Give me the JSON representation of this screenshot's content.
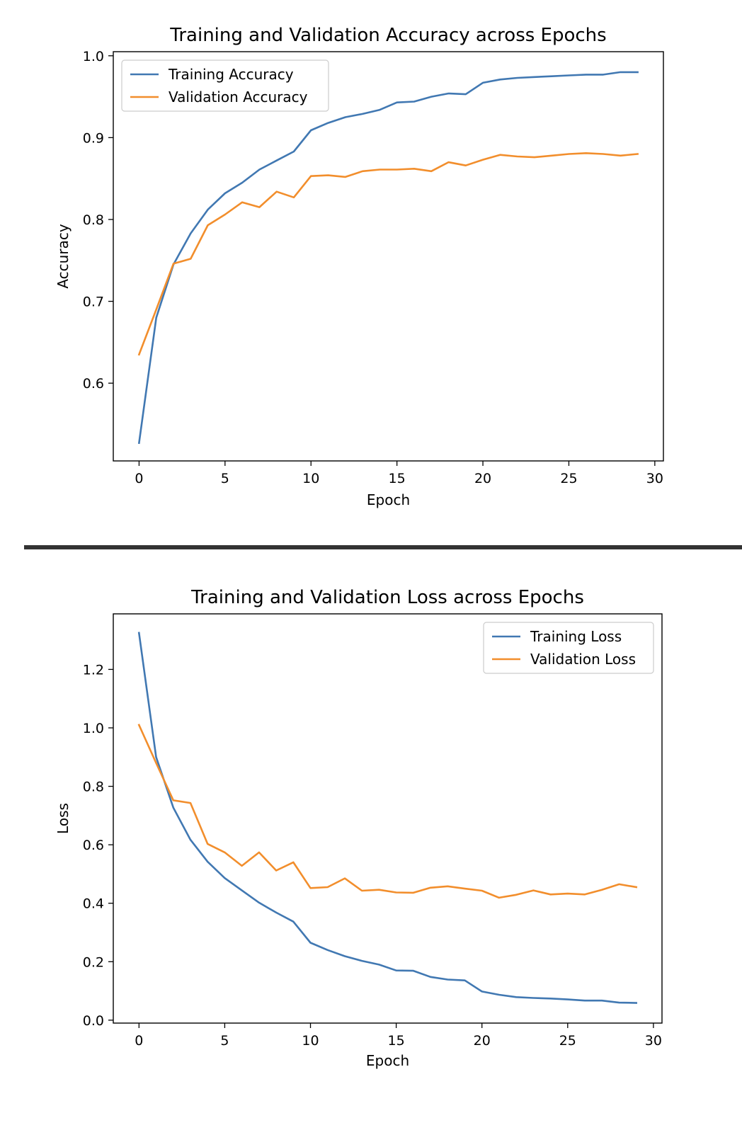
{
  "colors": {
    "training": "#4178b2",
    "validation": "#f28e2c",
    "divider": "#333333"
  },
  "chart_data": [
    {
      "type": "line",
      "title": "Training and Validation Accuracy across Epochs",
      "xlabel": "Epoch",
      "ylabel": "Accuracy",
      "xlim": [
        -1.5,
        30.5
      ],
      "ylim": [
        0.505,
        1.005
      ],
      "xticks": [
        0,
        5,
        10,
        15,
        20,
        25,
        30
      ],
      "xtick_labels": [
        "0",
        "5",
        "10",
        "15",
        "20",
        "25",
        "30"
      ],
      "yticks": [
        0.6,
        0.7,
        0.8,
        0.9,
        1.0
      ],
      "ytick_labels": [
        "0.6",
        "0.7",
        "0.8",
        "0.9",
        "1.0"
      ],
      "legend_position": "upper-left",
      "grid": false,
      "x": [
        0,
        1,
        2,
        3,
        4,
        5,
        6,
        7,
        8,
        9,
        10,
        11,
        12,
        13,
        14,
        15,
        16,
        17,
        18,
        19,
        20,
        21,
        22,
        23,
        24,
        25,
        26,
        27,
        28,
        29
      ],
      "series": [
        {
          "name": "Training Accuracy",
          "color": "#4178b2",
          "values": [
            0.527,
            0.68,
            0.745,
            0.783,
            0.812,
            0.832,
            0.845,
            0.861,
            0.872,
            0.883,
            0.909,
            0.918,
            0.925,
            0.929,
            0.934,
            0.943,
            0.944,
            0.95,
            0.954,
            0.953,
            0.967,
            0.971,
            0.973,
            0.974,
            0.975,
            0.976,
            0.977,
            0.977,
            0.98,
            0.98
          ]
        },
        {
          "name": "Validation Accuracy",
          "color": "#f28e2c",
          "values": [
            0.635,
            0.69,
            0.746,
            0.752,
            0.793,
            0.806,
            0.821,
            0.815,
            0.834,
            0.827,
            0.853,
            0.854,
            0.852,
            0.859,
            0.861,
            0.861,
            0.862,
            0.859,
            0.87,
            0.866,
            0.873,
            0.879,
            0.877,
            0.876,
            0.878,
            0.88,
            0.881,
            0.88,
            0.878,
            0.88
          ]
        }
      ]
    },
    {
      "type": "line",
      "title": "Training and Validation Loss across Epochs",
      "xlabel": "Epoch",
      "ylabel": "Loss",
      "xlim": [
        -1.5,
        30.5
      ],
      "ylim": [
        -0.01,
        1.39
      ],
      "xticks": [
        0,
        5,
        10,
        15,
        20,
        25,
        30
      ],
      "xtick_labels": [
        "0",
        "5",
        "10",
        "15",
        "20",
        "25",
        "30"
      ],
      "yticks": [
        0.0,
        0.2,
        0.4,
        0.6,
        0.8,
        1.0,
        1.2
      ],
      "ytick_labels": [
        "0.0",
        "0.2",
        "0.4",
        "0.6",
        "0.8",
        "1.0",
        "1.2"
      ],
      "legend_position": "upper-right",
      "grid": false,
      "x": [
        0,
        1,
        2,
        3,
        4,
        5,
        6,
        7,
        8,
        9,
        10,
        11,
        12,
        13,
        14,
        15,
        16,
        17,
        18,
        19,
        20,
        21,
        22,
        23,
        24,
        25,
        26,
        27,
        28,
        29
      ],
      "series": [
        {
          "name": "Training Loss",
          "color": "#4178b2",
          "values": [
            1.325,
            0.9,
            0.727,
            0.617,
            0.542,
            0.486,
            0.444,
            0.402,
            0.368,
            0.337,
            0.265,
            0.24,
            0.219,
            0.203,
            0.19,
            0.17,
            0.169,
            0.148,
            0.139,
            0.136,
            0.098,
            0.087,
            0.079,
            0.076,
            0.074,
            0.071,
            0.067,
            0.067,
            0.06,
            0.059
          ]
        },
        {
          "name": "Validation Loss",
          "color": "#f28e2c",
          "values": [
            1.01,
            0.88,
            0.752,
            0.743,
            0.603,
            0.574,
            0.528,
            0.574,
            0.512,
            0.54,
            0.452,
            0.455,
            0.485,
            0.443,
            0.446,
            0.437,
            0.436,
            0.453,
            0.458,
            0.45,
            0.443,
            0.419,
            0.429,
            0.444,
            0.43,
            0.433,
            0.43,
            0.446,
            0.465,
            0.455
          ]
        }
      ]
    }
  ]
}
